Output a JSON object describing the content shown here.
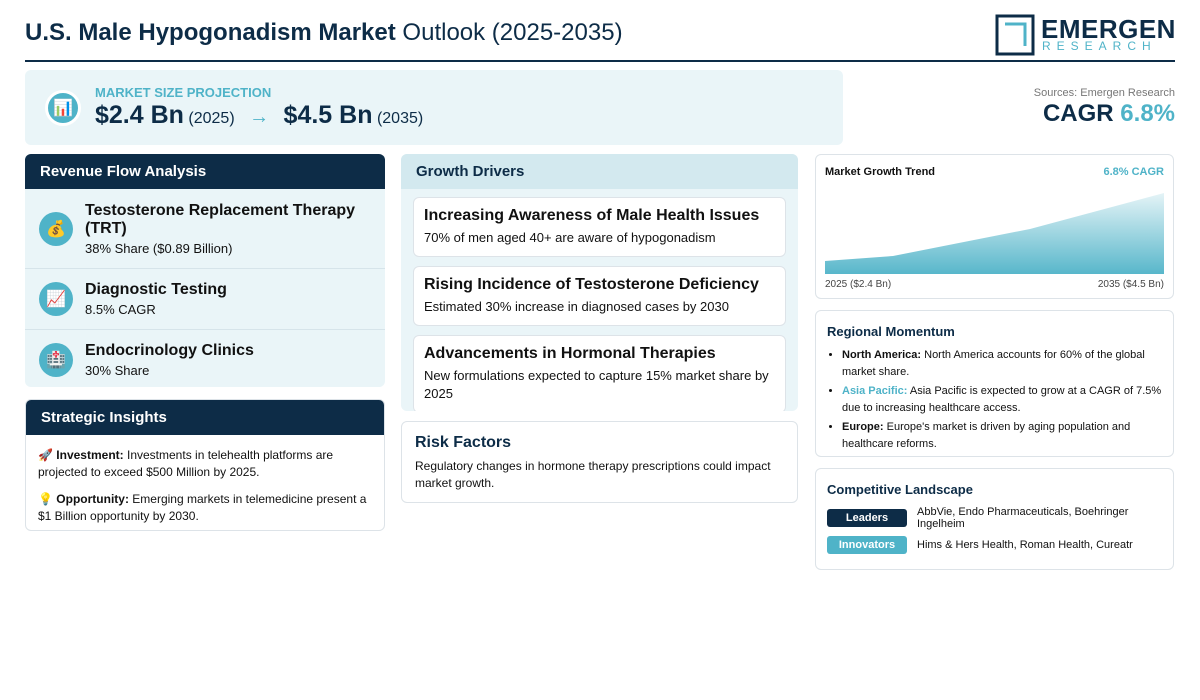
{
  "header": {
    "title_bold": "U.S. Male Hypogonadism Market",
    "title_rest": "Outlook (2025-2035)",
    "logo_name": "EMERGEN",
    "logo_sub": "RESEARCH"
  },
  "projection": {
    "icon": "📊",
    "label": "MARKET SIZE PROJECTION",
    "start_value": "$2.4 Bn",
    "start_year": "(2025)",
    "arrow": "→",
    "end_value": "$4.5 Bn",
    "end_year": "(2035)"
  },
  "cagr": {
    "source": "Sources: Emergen Research",
    "label": "CAGR",
    "value": "6.8%"
  },
  "revenue_flow": {
    "title": "Revenue Flow Analysis",
    "items": [
      {
        "icon": "💰",
        "name": "Testosterone Replacement Therapy (TRT)",
        "detail": "38% Share ($0.89 Billion)"
      },
      {
        "icon": "📈",
        "name": "Diagnostic Testing",
        "detail": "8.5% CAGR"
      },
      {
        "icon": "🏥",
        "name": "Endocrinology Clinics",
        "detail": "30% Share"
      }
    ]
  },
  "strategic_insights": {
    "title": "Strategic Insights",
    "items": [
      {
        "icon": "🚀",
        "label": "Investment:",
        "text": "Investments in telehealth platforms are projected to exceed $500 Million by 2025."
      },
      {
        "icon": "💡",
        "label": "Opportunity:",
        "text": "Emerging markets in telemedicine present a $1 Billion opportunity by 2030."
      }
    ]
  },
  "growth_drivers": {
    "title": "Growth Drivers",
    "items": [
      {
        "title": "Increasing Awareness of Male Health Issues",
        "text": "70% of men aged 40+ are aware of hypogonadism"
      },
      {
        "title": "Rising Incidence of Testosterone Deficiency",
        "text": "Estimated 30% increase in diagnosed cases by 2030"
      },
      {
        "title": "Advancements in Hormonal Therapies",
        "text": "New formulations expected to capture 15% market share by 2025"
      }
    ]
  },
  "risk_factors": {
    "title": "Risk Factors",
    "text": "Regulatory changes in hormone therapy prescriptions could impact market growth."
  },
  "growth_trend": {
    "title": "Market Growth Trend",
    "badge": "6.8% CAGR",
    "start_label": "2025 ($2.4 Bn)",
    "end_label": "2035 ($4.5 Bn)"
  },
  "regional_momentum": {
    "title": "Regional Momentum",
    "items": [
      {
        "region": "North America:",
        "text": "North America accounts for 60% of the global market share."
      },
      {
        "region": "Asia Pacific:",
        "text": "Asia Pacific is expected to grow at a CAGR of 7.5% due to increasing healthcare access."
      },
      {
        "region": "Europe:",
        "text": "Europe's market is driven by aging population and healthcare reforms."
      }
    ]
  },
  "competitive_landscape": {
    "title": "Competitive Landscape",
    "groups": [
      {
        "tag": "Leaders",
        "companies": "AbbVie, Endo Pharmaceuticals, Boehringer Ingelheim"
      },
      {
        "tag": "Innovators",
        "companies": "Hims & Hers Health, Roman Health, Cureatr"
      }
    ]
  }
}
